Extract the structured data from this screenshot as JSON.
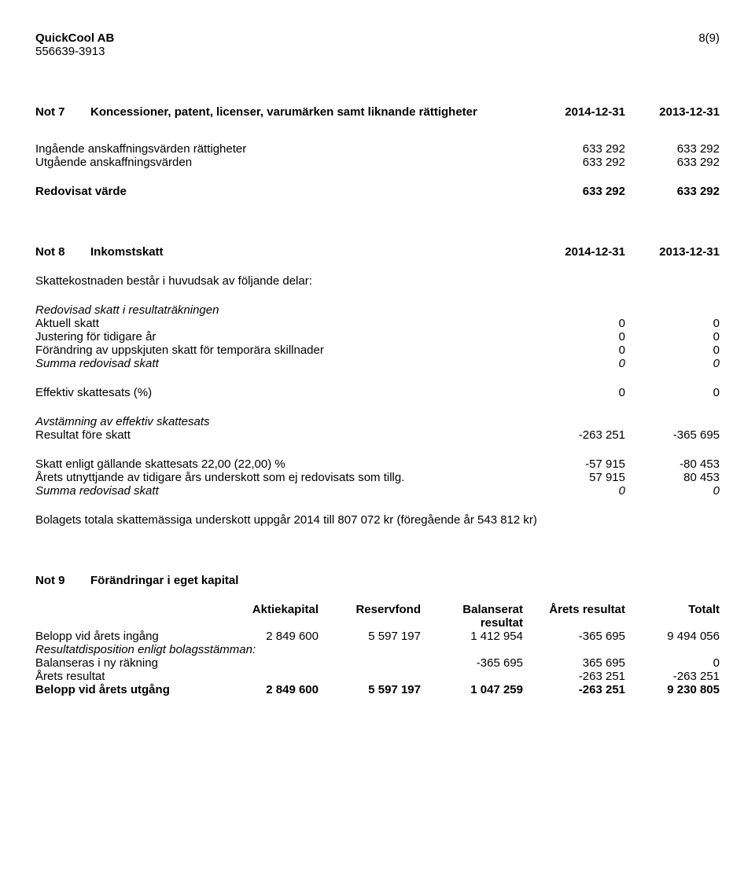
{
  "header": {
    "company": "QuickCool AB",
    "page_indicator": "8(9)",
    "org_no": "556639-3913"
  },
  "note7": {
    "num": "Not 7",
    "title": "Koncessioner, patent, licenser, varumärken samt liknande rättigheter",
    "d1": "2014-12-31",
    "d2": "2013-12-31",
    "rows": [
      {
        "label": "Ingående anskaffningsvärden rättigheter",
        "v1": "633 292",
        "v2": "633 292"
      },
      {
        "label": "Utgående anskaffningsvärden",
        "v1": "633 292",
        "v2": "633 292"
      }
    ],
    "total": {
      "label": "Redovisat värde",
      "v1": "633 292",
      "v2": "633 292"
    }
  },
  "note8": {
    "num": "Not 8",
    "title": "Inkomstskatt",
    "d1": "2014-12-31",
    "d2": "2013-12-31",
    "intro": "Skattekostnaden består i huvudsak av följande delar:",
    "sec1_title": "Redovisad skatt i resultaträkningen",
    "sec1_rows": [
      {
        "label": "Aktuell skatt",
        "v1": "0",
        "v2": "0"
      },
      {
        "label": "Justering för tidigare år",
        "v1": "0",
        "v2": "0"
      },
      {
        "label": "Förändring av uppskjuten skatt för temporära skillnader",
        "v1": "0",
        "v2": "0"
      }
    ],
    "sec1_sum": {
      "label": "Summa redovisad skatt",
      "v1": "0",
      "v2": "0"
    },
    "eff_rate": {
      "label": "Effektiv skattesats (%)",
      "v1": "0",
      "v2": "0"
    },
    "sec2_title": "Avstämning av effektiv skattesats",
    "sec2_rows": [
      {
        "label": "Resultat före skatt",
        "v1": "-263 251",
        "v2": "-365 695"
      }
    ],
    "sec3_rows": [
      {
        "label": "Skatt enligt gällande skattesats 22,00 (22,00) %",
        "v1": "-57 915",
        "v2": "-80 453"
      },
      {
        "label": "Årets utnyttjande av tidigare års underskott som ej redovisats som tillg.",
        "v1": "57 915",
        "v2": "80 453"
      }
    ],
    "sec3_sum": {
      "label": "Summa redovisad skatt",
      "v1": "0",
      "v2": "0"
    },
    "footnote": "Bolagets totala skattemässiga underskott uppgår 2014 till 807 072 kr (föregående år 543 812 kr)"
  },
  "note9": {
    "num": "Not 9",
    "title": "Förändringar i eget kapital",
    "headers": {
      "c1": "Aktiekapital",
      "c2": "Reservfond",
      "c3a": "Balanserat",
      "c3b": "resultat",
      "c4": "Årets resultat",
      "c5": "Totalt"
    },
    "rows": [
      {
        "label": "Belopp vid årets ingång",
        "c1": "2 849 600",
        "c2": "5 597 197",
        "c3": "1 412 954",
        "c4": "-365 695",
        "c5": "9 494 056"
      }
    ],
    "disp_label": "Resultatdisposition enligt bolagsstämman:",
    "rows2": [
      {
        "label": "Balanseras i ny räkning",
        "c1": "",
        "c2": "",
        "c3": "-365 695",
        "c4": "365 695",
        "c5": "0"
      },
      {
        "label": "Årets resultat",
        "c1": "",
        "c2": "",
        "c3": "",
        "c4": "-263 251",
        "c5": "-263 251"
      }
    ],
    "total": {
      "label": "Belopp vid årets utgång",
      "c1": "2 849 600",
      "c2": "5 597 197",
      "c3": "1 047 259",
      "c4": "-263 251",
      "c5": "9 230 805"
    }
  }
}
